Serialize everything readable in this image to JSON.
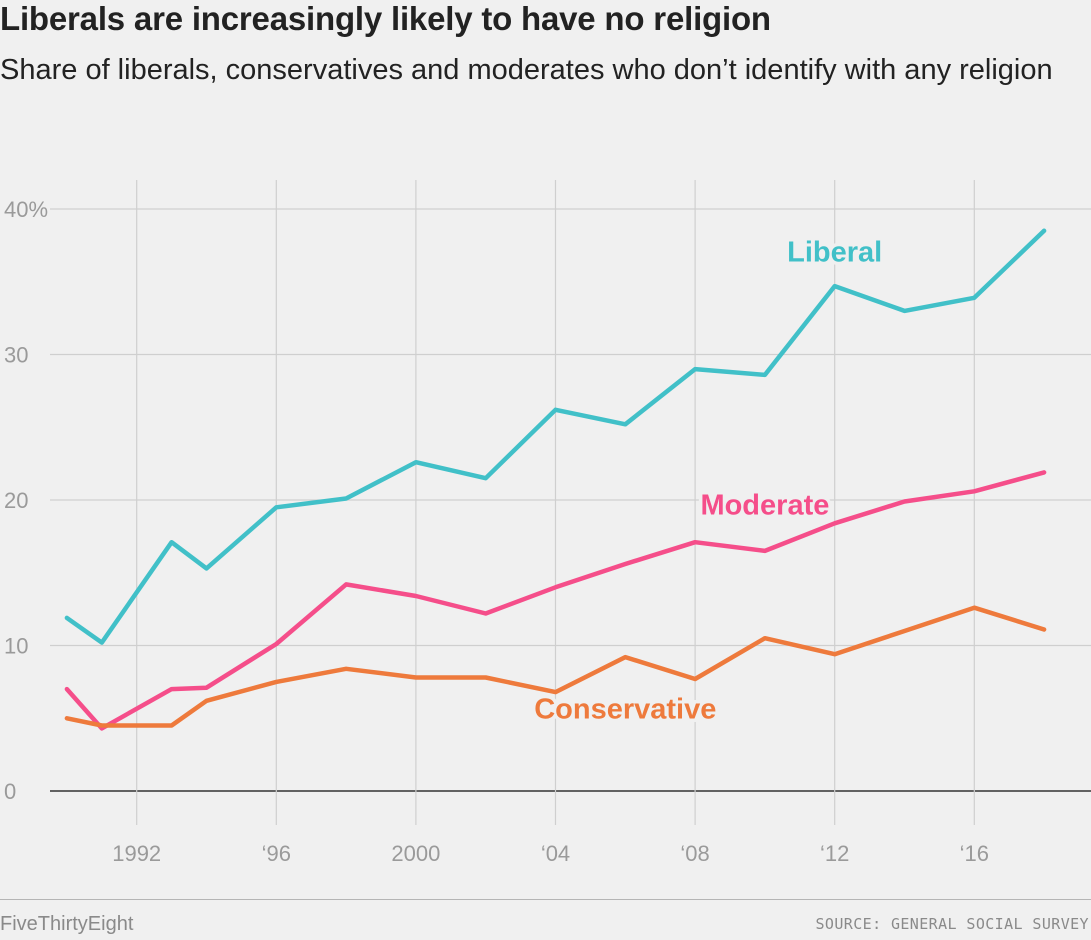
{
  "title": "Liberals are increasingly likely to have no religion",
  "subtitle": "Share of liberals, conservatives and moderates who don’t identify with any religion",
  "footer": {
    "brand": "FiveThirtyEight",
    "source": "SOURCE: GENERAL SOCIAL SURVEY"
  },
  "chart_data": {
    "type": "line",
    "x": [
      1990,
      1991,
      1993,
      1994,
      1996,
      1998,
      2000,
      2002,
      2004,
      2006,
      2008,
      2010,
      2012,
      2014,
      2016,
      2018
    ],
    "xlim": [
      1989,
      2019
    ],
    "ylim": [
      0,
      40
    ],
    "x_ticks": [
      {
        "value": 1992,
        "label": "1992"
      },
      {
        "value": 1996,
        "label": "‘96"
      },
      {
        "value": 2000,
        "label": "2000"
      },
      {
        "value": 2004,
        "label": "‘04"
      },
      {
        "value": 2008,
        "label": "‘08"
      },
      {
        "value": 2012,
        "label": "‘12"
      },
      {
        "value": 2016,
        "label": "‘16"
      }
    ],
    "y_ticks": [
      {
        "value": 0,
        "label": "0"
      },
      {
        "value": 10,
        "label": "10"
      },
      {
        "value": 20,
        "label": "20"
      },
      {
        "value": 30,
        "label": "30"
      },
      {
        "value": 40,
        "label": "40%"
      }
    ],
    "grid": true,
    "series": [
      {
        "name": "Liberal",
        "color": "#41c0c8",
        "values": [
          11.9,
          10.2,
          17.1,
          15.3,
          19.5,
          20.1,
          22.6,
          21.5,
          26.2,
          25.2,
          29.0,
          28.6,
          34.7,
          33.0,
          33.9,
          38.5
        ],
        "label_at": [
          2012,
          36.4
        ]
      },
      {
        "name": "Moderate",
        "color": "#f54e8a",
        "values": [
          7.0,
          4.3,
          7.0,
          7.1,
          10.1,
          14.2,
          13.4,
          12.2,
          14.0,
          15.6,
          17.1,
          16.5,
          18.4,
          19.9,
          20.6,
          21.9
        ],
        "label_at": [
          2010,
          19.0
        ]
      },
      {
        "name": "Conservative",
        "color": "#ee7a3c",
        "values": [
          5.0,
          4.5,
          4.5,
          6.2,
          7.5,
          8.4,
          7.8,
          7.8,
          6.8,
          9.2,
          7.7,
          10.5,
          9.4,
          11.0,
          12.6,
          11.1
        ],
        "label_at": [
          2006,
          5.0
        ]
      }
    ]
  }
}
